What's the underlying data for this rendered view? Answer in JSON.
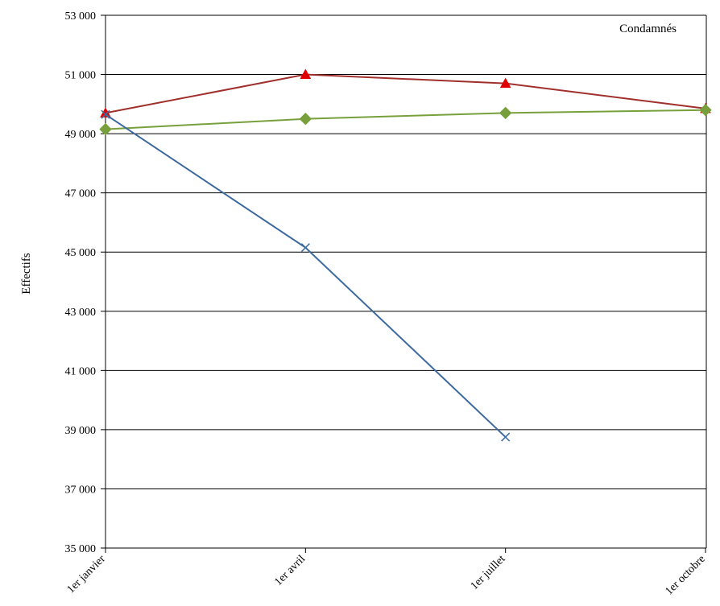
{
  "chart_data": {
    "type": "line",
    "title": "Condamnés",
    "xlabel": "",
    "ylabel": "Effectifs",
    "categories": [
      "1er janvier",
      "1er avril",
      "1er juillet",
      "1er octobre"
    ],
    "ylim": [
      35000,
      53000
    ],
    "yticks": [
      35000,
      37000,
      39000,
      41000,
      43000,
      45000,
      47000,
      49000,
      51000,
      53000
    ],
    "ytick_labels": [
      "35 000",
      "37 000",
      "39 000",
      "41 000",
      "43 000",
      "45 000",
      "47 000",
      "49 000",
      "51 000",
      "53 000"
    ],
    "grid": "horizontal",
    "series": [
      {
        "values": [
          49700,
          51000,
          50700,
          49850
        ],
        "color": "#a0302c",
        "marker": "triangle",
        "marker_color": "#e00000"
      },
      {
        "values": [
          49150,
          49500,
          49700,
          49800
        ],
        "color": "#77a03c",
        "marker": "diamond",
        "marker_color": "#77a03c"
      },
      {
        "values": [
          49650,
          45150,
          38750,
          null
        ],
        "color": "#3d6a9e",
        "marker": "x",
        "marker_color": "#3d6a9e"
      }
    ]
  }
}
